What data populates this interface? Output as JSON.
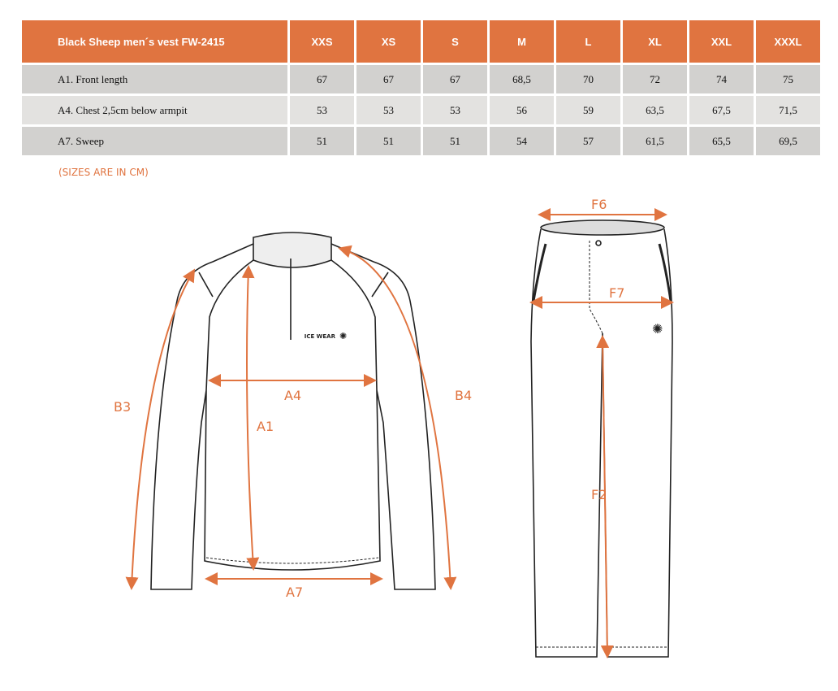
{
  "table": {
    "title": "Black Sheep men´s vest FW-2415",
    "sizes": [
      "XXS",
      "XS",
      "S",
      "M",
      "L",
      "XL",
      "XXL",
      "XXXL"
    ],
    "rows": [
      {
        "label": "A1. Front length",
        "values": [
          "67",
          "67",
          "67",
          "68,5",
          "70",
          "72",
          "74",
          "75"
        ]
      },
      {
        "label": "A4. Chest 2,5cm below armpit",
        "values": [
          "53",
          "53",
          "53",
          "56",
          "59",
          "63,5",
          "67,5",
          "71,5"
        ]
      },
      {
        "label": "A7. Sweep",
        "values": [
          "51",
          "51",
          "51",
          "54",
          "57",
          "61,5",
          "65,5",
          "69,5"
        ]
      }
    ]
  },
  "note": "(SIZES ARE IN CM)",
  "jacket_labels": {
    "b3": "B3",
    "a4": "A4",
    "a1": "A1",
    "b4": "B4",
    "a7": "A7",
    "logo": "ICE WEAR"
  },
  "pants_labels": {
    "f6": "F6",
    "f7": "F7",
    "f2": "F2"
  },
  "accent": "#e07440"
}
